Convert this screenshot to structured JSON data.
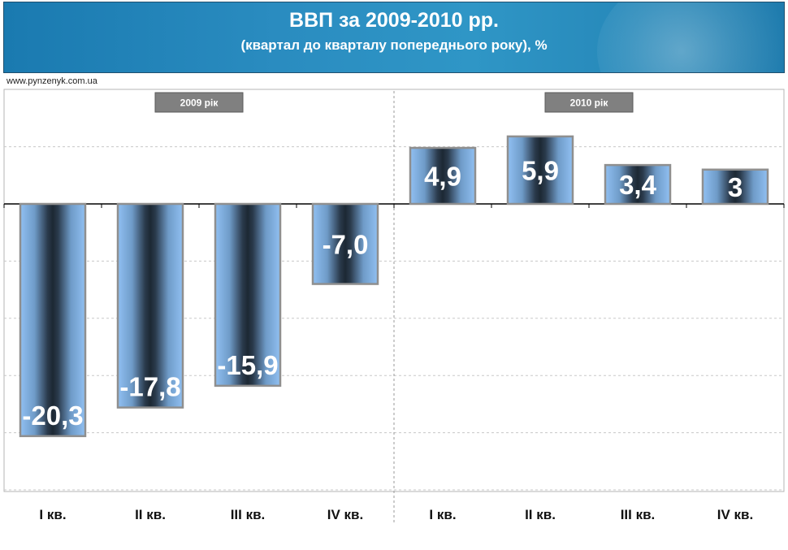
{
  "header": {
    "title": "ВВП за 2009-2010 рр.",
    "subtitle": "(квартал до кварталу попереднього року), %"
  },
  "source": "www.pynzenyk.com.ua",
  "colors": {
    "header_bg": "#2a8cc0",
    "bar_edge": "#8fbef0",
    "bar_center": "#1c2833",
    "year_badge": "#808080"
  },
  "chart_data": {
    "type": "bar",
    "title": "ВВП за 2009-2010 рр.",
    "subtitle": "(квартал до кварталу попереднього року), %",
    "groups": [
      {
        "label": "2009 рік",
        "categories": [
          "I кв.",
          "II кв.",
          "III кв.",
          "IV кв."
        ]
      },
      {
        "label": "2010 рік",
        "categories": [
          "I кв.",
          "II кв.",
          "III кв.",
          "IV кв."
        ]
      }
    ],
    "categories": [
      "I кв.",
      "II кв.",
      "III кв.",
      "IV кв.",
      "I кв.",
      "II кв.",
      "III кв.",
      "IV кв."
    ],
    "values": [
      -20.3,
      -17.8,
      -15.9,
      -7.0,
      4.9,
      5.9,
      3.4,
      3.0
    ],
    "data_labels": [
      "-20,3",
      "-17,8",
      "-15,9",
      "-7,0",
      "4,9",
      "5,9",
      "3,4",
      "3"
    ],
    "ylim": [
      -25,
      5
    ],
    "grid": true,
    "xlabel": "",
    "ylabel": ""
  }
}
